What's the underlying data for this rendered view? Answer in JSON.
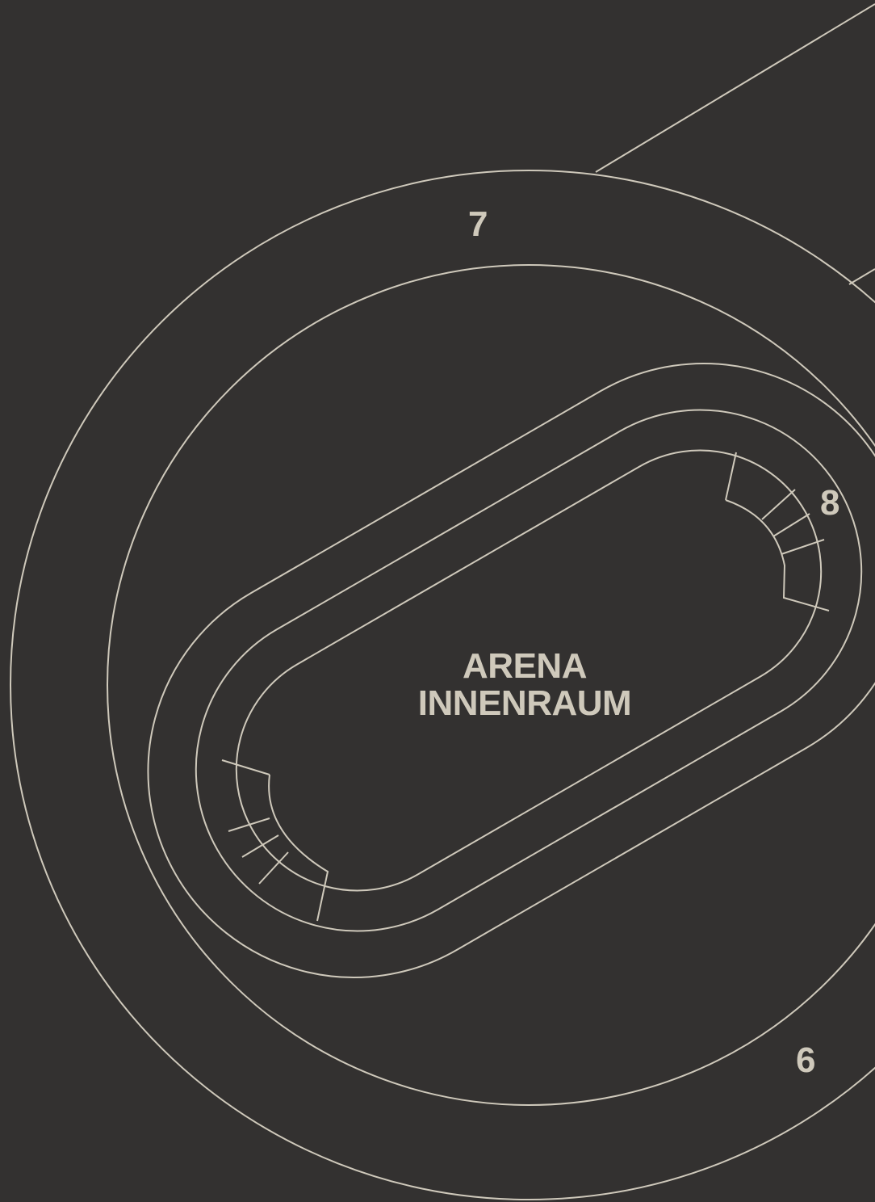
{
  "colors": {
    "background": "#333130",
    "line": "#cfc9bb",
    "text": "#cfc9bb"
  },
  "sections": {
    "section_7": "7",
    "section_8": "8",
    "section_6": "6"
  },
  "arena": {
    "line1": "ARENA",
    "line2": "INNENRAUM"
  }
}
